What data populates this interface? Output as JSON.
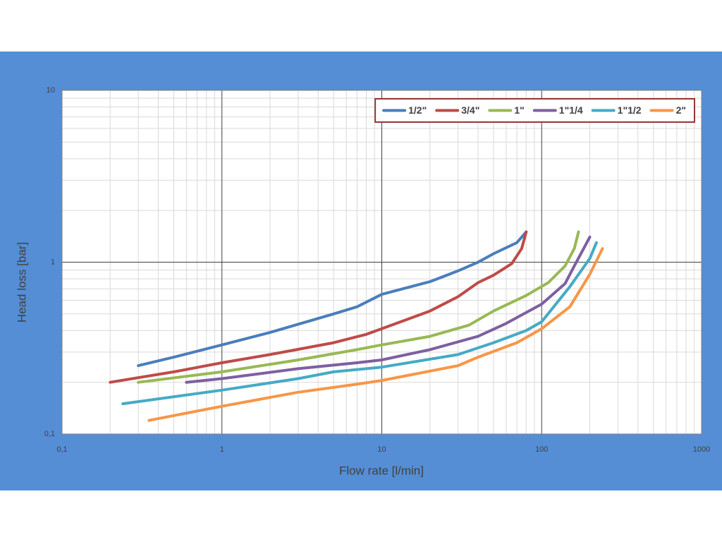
{
  "chart_data": {
    "type": "line",
    "x_label": "Flow rate [l/min]",
    "y_label": "Head loss [bar]",
    "xscale": "log",
    "yscale": "log",
    "xlim": [
      0.1,
      1000
    ],
    "ylim": [
      0.1,
      10
    ],
    "xticks": [
      {
        "value": 0.1,
        "label": "0,1"
      },
      1,
      10,
      100,
      1000
    ],
    "yticks": [
      {
        "value": 0.1,
        "label": "0,1"
      },
      1,
      10
    ],
    "grid": true,
    "minor_grid": true,
    "legend": "upper right",
    "series": [
      {
        "name": "1/2\"",
        "color": "#4a7ebb",
        "x": [
          0.3,
          0.5,
          1,
          2,
          5,
          7,
          10,
          20,
          30,
          40,
          50,
          70,
          80
        ],
        "values": [
          0.25,
          0.28,
          0.33,
          0.39,
          0.5,
          0.55,
          0.65,
          0.77,
          0.89,
          1.0,
          1.12,
          1.3,
          1.5
        ]
      },
      {
        "name": "3/4\"",
        "color": "#be4b48",
        "x": [
          0.2,
          0.5,
          1,
          2,
          5,
          8,
          10,
          20,
          30,
          40,
          50,
          65,
          75,
          80
        ],
        "values": [
          0.2,
          0.23,
          0.26,
          0.29,
          0.34,
          0.38,
          0.41,
          0.52,
          0.63,
          0.76,
          0.84,
          0.98,
          1.2,
          1.5
        ]
      },
      {
        "name": "1\"",
        "color": "#98b954",
        "x": [
          0.3,
          1,
          3,
          7,
          10,
          20,
          35,
          50,
          80,
          110,
          140,
          160,
          170
        ],
        "values": [
          0.2,
          0.23,
          0.27,
          0.31,
          0.33,
          0.37,
          0.43,
          0.52,
          0.64,
          0.76,
          0.95,
          1.2,
          1.5
        ]
      },
      {
        "name": "1\"1/4",
        "color": "#7d60a0",
        "x": [
          0.6,
          1,
          3,
          7,
          10,
          20,
          40,
          60,
          100,
          140,
          160,
          200
        ],
        "values": [
          0.2,
          0.21,
          0.24,
          0.26,
          0.27,
          0.31,
          0.37,
          0.44,
          0.57,
          0.75,
          0.95,
          1.4
        ]
      },
      {
        "name": "1\"1/2",
        "color": "#46aac5",
        "x": [
          0.24,
          1,
          3,
          5,
          10,
          30,
          50,
          80,
          100,
          150,
          200,
          220
        ],
        "values": [
          0.15,
          0.18,
          0.21,
          0.23,
          0.245,
          0.29,
          0.34,
          0.4,
          0.45,
          0.72,
          1.05,
          1.3
        ]
      },
      {
        "name": "2\"",
        "color": "#f79646",
        "x": [
          0.35,
          1,
          3,
          7,
          10,
          30,
          40,
          70,
          100,
          150,
          200,
          240
        ],
        "values": [
          0.12,
          0.145,
          0.175,
          0.195,
          0.205,
          0.25,
          0.28,
          0.34,
          0.41,
          0.55,
          0.85,
          1.2
        ]
      }
    ]
  }
}
